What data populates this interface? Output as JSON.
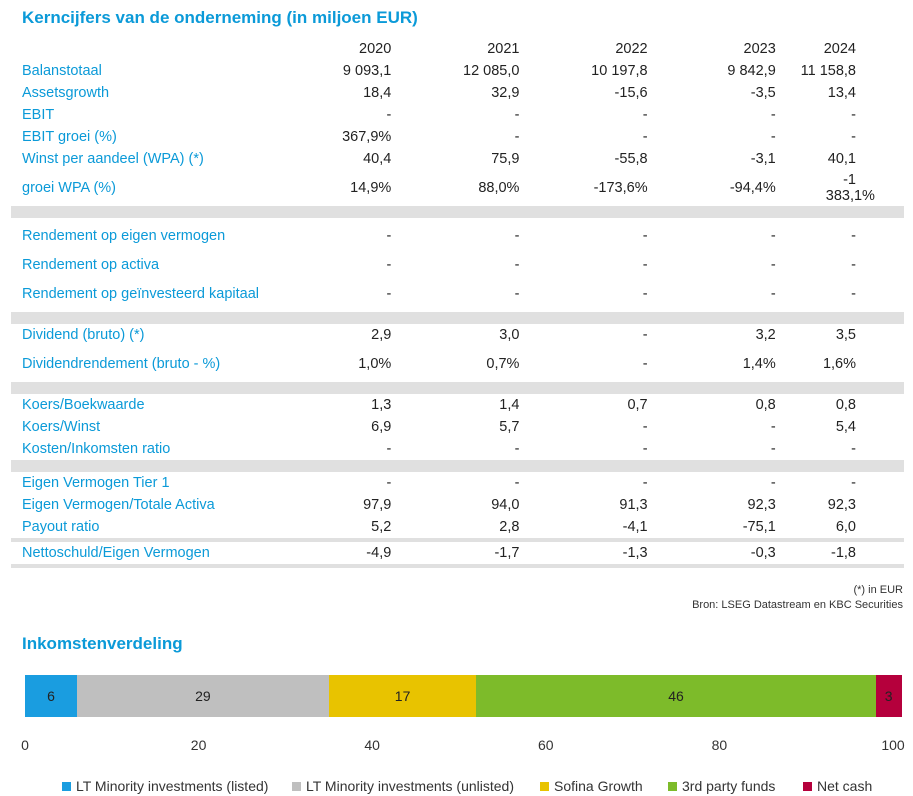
{
  "title": "Kerncijfers van de onderneming (in miljoen EUR)",
  "years": [
    "2020",
    "2021",
    "2022",
    "2023",
    "2024"
  ],
  "groups": [
    [
      {
        "label": "Balanstotaal",
        "values": [
          "9 093,1",
          "12 085,0",
          "10 197,8",
          "9 842,9",
          "11 158,8"
        ]
      },
      {
        "label": "Assetsgrowth",
        "values": [
          "18,4",
          "32,9",
          "-15,6",
          "-3,5",
          "13,4"
        ]
      },
      {
        "label": "EBIT",
        "values": [
          "-",
          "-",
          "-",
          "-",
          "-"
        ]
      },
      {
        "label": "EBIT groei (%)",
        "values": [
          "367,9%",
          "-",
          "-",
          "-",
          "-"
        ]
      },
      {
        "label": "Winst per aandeel (WPA) (*)",
        "values": [
          "40,4",
          "75,9",
          "-55,8",
          "-3,1",
          "40,1"
        ]
      },
      {
        "label": "groei WPA (%)",
        "values": [
          "14,9%",
          "88,0%",
          "-173,6%",
          "-94,4%",
          "-1 383,1%"
        ],
        "tall": true
      }
    ],
    [
      {
        "label": "Rendement op eigen vermogen",
        "values": [
          "-",
          "-",
          "-",
          "-",
          "-"
        ],
        "tall": true
      },
      {
        "label": "Rendement op activa",
        "values": [
          "-",
          "-",
          "-",
          "-",
          "-"
        ]
      },
      {
        "label": "Rendement op geïnvesteerd kapitaal",
        "values": [
          "-",
          "-",
          "-",
          "-",
          "-"
        ],
        "tall": true
      }
    ],
    [
      {
        "label": "Dividend (bruto) (*)",
        "values": [
          "2,9",
          "3,0",
          "-",
          "3,2",
          "3,5"
        ]
      },
      {
        "label": "Dividendrendement (bruto - %)",
        "values": [
          "1,0%",
          "0,7%",
          "-",
          "1,4%",
          "1,6%"
        ],
        "tall": true
      }
    ],
    [
      {
        "label": "Koers/Boekwaarde",
        "values": [
          "1,3",
          "1,4",
          "0,7",
          "0,8",
          "0,8"
        ]
      },
      {
        "label": "Koers/Winst",
        "values": [
          "6,9",
          "5,7",
          "-",
          "-",
          "5,4"
        ]
      },
      {
        "label": "Kosten/Inkomsten ratio",
        "values": [
          "-",
          "-",
          "-",
          "-",
          "-"
        ]
      }
    ],
    [
      {
        "label": "Eigen Vermogen Tier 1",
        "values": [
          "-",
          "-",
          "-",
          "-",
          "-"
        ]
      },
      {
        "label": "Eigen Vermogen/Totale Activa",
        "values": [
          "97,9",
          "94,0",
          "91,3",
          "92,3",
          "92,3"
        ]
      },
      {
        "label": "Payout ratio",
        "values": [
          "5,2",
          "2,8",
          "-4,1",
          "-75,1",
          "6,0"
        ]
      }
    ],
    [
      {
        "label": "Nettoschuld/Eigen Vermogen",
        "values": [
          "-4,9",
          "-1,7",
          "-1,3",
          "-0,3",
          "-1,8"
        ]
      }
    ]
  ],
  "notes": {
    "eur": "(*) in EUR",
    "source": "Bron: LSEG Datastream en KBC Securities"
  },
  "chart_title": "Inkomstenverdeling",
  "chart_data": {
    "type": "bar",
    "orientation": "horizontal-stacked",
    "xlim": [
      0,
      100
    ],
    "ticks": [
      0,
      20,
      40,
      60,
      80,
      100
    ],
    "series": [
      {
        "name": "LT Minority investments (listed)",
        "value": 6,
        "color": "#1a9de0"
      },
      {
        "name": "LT Minority investments (unlisted)",
        "value": 29,
        "color": "#bfbfbf"
      },
      {
        "name": "Sofina Growth",
        "value": 17,
        "color": "#e8c300"
      },
      {
        "name": "3rd party funds",
        "value": 46,
        "color": "#7dbb2a"
      },
      {
        "name": "Net cash",
        "value": 3,
        "color": "#b5003c"
      }
    ]
  }
}
